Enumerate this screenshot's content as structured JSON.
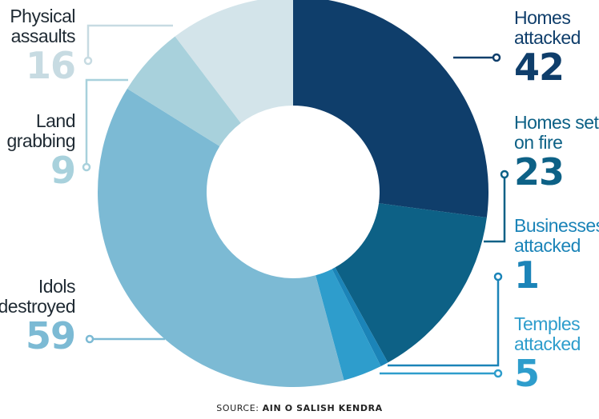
{
  "chart_data": {
    "type": "pie",
    "donut": true,
    "slices": [
      {
        "label": "Homes attacked",
        "value": 42,
        "color": "#0f3e6b"
      },
      {
        "label": "Homes set on fire",
        "value": 23,
        "color": "#0d6186"
      },
      {
        "label": "Businesses attacked",
        "value": 1,
        "color": "#1b84b8"
      },
      {
        "label": "Temples attacked",
        "value": 5,
        "color": "#2e9dcc"
      },
      {
        "label": "Idols destroyed",
        "value": 59,
        "color": "#7cbad4"
      },
      {
        "label": "Land grabbing",
        "value": 9,
        "color": "#a8d1dc"
      },
      {
        "label": "Physical assaults",
        "value": 16,
        "color": "#d3e4ea"
      }
    ]
  },
  "labels": {
    "homes_attacked": {
      "line1": "Homes",
      "line2": "attacked",
      "value": "42"
    },
    "homes_fire": {
      "line1": "Homes set",
      "line2": "on fire",
      "value": "23"
    },
    "businesses": {
      "line1": "Businesses",
      "line2": "attacked",
      "value": "1"
    },
    "temples": {
      "line1": "Temples",
      "line2": "attacked",
      "value": "5"
    },
    "idols": {
      "line1": "Idols",
      "line2": "destroyed",
      "value": "59"
    },
    "land": {
      "line1": "Land",
      "line2": "grabbing",
      "value": "9"
    },
    "physical": {
      "line1": "Physical",
      "line2": "assaults",
      "value": "16"
    }
  },
  "source": {
    "prefix": "SOURCE: ",
    "name": "AIN O SALISH KENDRA"
  }
}
